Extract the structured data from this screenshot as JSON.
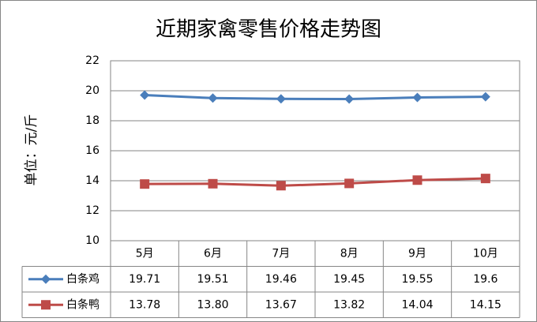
{
  "chart_data": {
    "type": "line",
    "title": "近期家禽零售价格走势图",
    "y_label": "单位：元/斤",
    "categories": [
      "5月",
      "6月",
      "7月",
      "8月",
      "9月",
      "10月"
    ],
    "series": [
      {
        "name": "白条鸡",
        "color": "#4a7ebb",
        "marker": "diamond",
        "values": [
          19.71,
          19.51,
          19.46,
          19.45,
          19.55,
          19.6
        ]
      },
      {
        "name": "白条鸭",
        "color": "#be4b48",
        "marker": "square",
        "values": [
          13.78,
          13.8,
          13.67,
          13.82,
          14.04,
          14.15
        ],
        "value_labels": [
          "13.78",
          "13.80",
          "13.67",
          "13.82",
          "14.04",
          "14.15"
        ]
      }
    ],
    "ylim": [
      10,
      22
    ],
    "yticks": [
      10,
      12,
      14,
      16,
      18,
      20,
      22
    ],
    "grid": true
  }
}
